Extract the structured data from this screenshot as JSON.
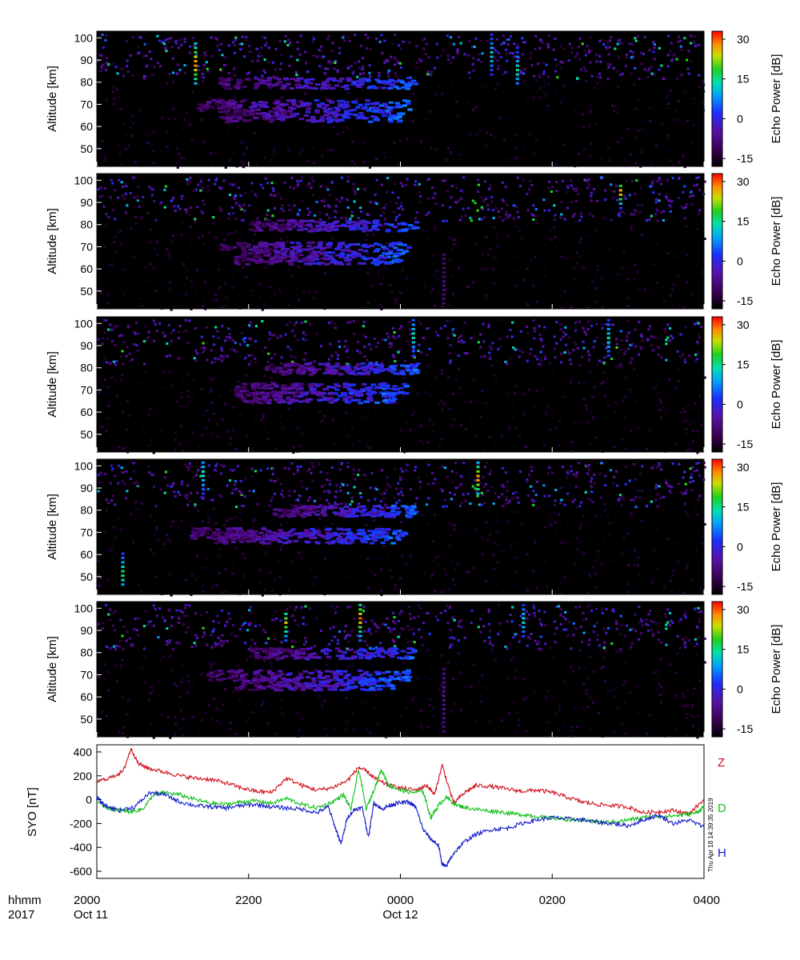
{
  "figure": {
    "stamp": "Thu Apr 18 14:39:35 2019",
    "time_row_label": "hhmm",
    "date_row_label": "2017"
  },
  "chart_data": [
    {
      "type": "heatmap",
      "panel": 1,
      "ylabel": "Altitude [km]",
      "yticks": [
        50,
        60,
        70,
        80,
        90,
        100
      ],
      "ylim": [
        42,
        103
      ],
      "xticks": [
        "2000",
        "2200",
        "0000",
        "0200",
        "0400"
      ],
      "xlim_hours": [
        20,
        28
      ],
      "colorbar_label": "Echo Power [dB]",
      "colorbar_ticks": [
        30,
        15,
        0,
        -15
      ],
      "colorbar_range": [
        -18,
        33
      ],
      "layers": [
        {
          "alt": 80,
          "start": 1.6,
          "end": 4.2
        },
        {
          "alt": 70,
          "start": 1.3,
          "end": 4.1
        },
        {
          "alt": 65,
          "start": 1.6,
          "end": 4.0
        }
      ],
      "features": [
        {
          "t": -2.72,
          "alt": 89,
          "top": 98,
          "bot": 80,
          "dB": 30
        },
        {
          "t": 1.18,
          "alt": 93,
          "top": 102,
          "bot": 84,
          "dB": 12
        },
        {
          "t": 1.52,
          "alt": 86,
          "top": 96,
          "bot": 80,
          "dB": 15
        }
      ]
    },
    {
      "type": "heatmap",
      "panel": 2,
      "ylabel": "Altitude [km]",
      "yticks": [
        50,
        60,
        70,
        80,
        90,
        100
      ],
      "ylim": [
        42,
        103
      ],
      "xticks": [
        "2000",
        "2200",
        "0000",
        "0200",
        "0400"
      ],
      "xlim_hours": [
        20,
        28
      ],
      "colorbar_label": "Echo Power [dB]",
      "colorbar_ticks": [
        30,
        15,
        0,
        -15
      ],
      "colorbar_range": [
        -18,
        33
      ],
      "layers": [
        {
          "alt": 80,
          "start": 2.0,
          "end": 4.2
        },
        {
          "alt": 70,
          "start": 1.6,
          "end": 4.1
        },
        {
          "alt": 65,
          "start": 1.8,
          "end": 4.0
        }
      ],
      "features": [
        {
          "t": 0.55,
          "alt": 55,
          "top": 67,
          "bot": 45,
          "dB": -8
        },
        {
          "t": 2.88,
          "alt": 95,
          "top": 98,
          "bot": 88,
          "dB": 30
        }
      ]
    },
    {
      "type": "heatmap",
      "panel": 3,
      "ylabel": "Altitude [km]",
      "yticks": [
        50,
        60,
        70,
        80,
        90,
        100
      ],
      "ylim": [
        42,
        103
      ],
      "xticks": [
        "2000",
        "2200",
        "0000",
        "0200",
        "0400"
      ],
      "xlim_hours": [
        20,
        28
      ],
      "colorbar_label": "Echo Power [dB]",
      "colorbar_ticks": [
        30,
        15,
        0,
        -15
      ],
      "colorbar_range": [
        -18,
        33
      ],
      "layers": [
        {
          "alt": 80,
          "start": 2.2,
          "end": 4.2
        },
        {
          "alt": 71,
          "start": 1.8,
          "end": 4.1
        },
        {
          "alt": 67,
          "start": 1.8,
          "end": 3.9
        }
      ],
      "features": [
        {
          "t": 0.15,
          "alt": 95,
          "top": 102,
          "bot": 86,
          "dB": 15
        },
        {
          "t": 2.72,
          "alt": 94,
          "top": 102,
          "bot": 86,
          "dB": 14
        }
      ]
    },
    {
      "type": "heatmap",
      "panel": 4,
      "ylabel": "Altitude [km]",
      "yticks": [
        50,
        60,
        70,
        80,
        90,
        100
      ],
      "ylim": [
        42,
        103
      ],
      "xticks": [
        "2000",
        "2200",
        "0000",
        "0200",
        "0400"
      ],
      "xlim_hours": [
        20,
        28
      ],
      "colorbar_label": "Echo Power [dB]",
      "colorbar_ticks": [
        30,
        15,
        0,
        -15
      ],
      "colorbar_range": [
        -18,
        33
      ],
      "layers": [
        {
          "alt": 80,
          "start": 2.3,
          "end": 4.2
        },
        {
          "alt": 70,
          "start": 1.2,
          "end": 4.1
        },
        {
          "alt": 68,
          "start": 1.5,
          "end": 4.0
        }
      ],
      "features": [
        {
          "t": -3.68,
          "alt": 52,
          "top": 62,
          "bot": 47,
          "dB": 18
        },
        {
          "t": -2.62,
          "alt": 97,
          "top": 102,
          "bot": 86,
          "dB": 15
        },
        {
          "t": 1.0,
          "alt": 95,
          "top": 102,
          "bot": 88,
          "dB": 30
        }
      ]
    },
    {
      "type": "heatmap",
      "panel": 5,
      "ylabel": "Altitude [km]",
      "yticks": [
        50,
        60,
        70,
        80,
        90,
        100
      ],
      "ylim": [
        42,
        103
      ],
      "xticks": [
        "2000",
        "2200",
        "0000",
        "0200",
        "0400"
      ],
      "xlim_hours": [
        20,
        28
      ],
      "colorbar_label": "Echo Power [dB]",
      "colorbar_ticks": [
        30,
        15,
        0,
        -15
      ],
      "colorbar_range": [
        -18,
        33
      ],
      "layers": [
        {
          "alt": 80,
          "start": 2.0,
          "end": 4.2
        },
        {
          "alt": 70,
          "start": 1.4,
          "end": 4.1
        },
        {
          "alt": 66,
          "start": 1.8,
          "end": 3.9
        }
      ],
      "features": [
        {
          "t": -1.53,
          "alt": 94,
          "top": 99,
          "bot": 86,
          "dB": 25
        },
        {
          "t": -0.55,
          "alt": 96,
          "top": 102,
          "bot": 86,
          "dB": 30
        },
        {
          "t": 0.55,
          "alt": 60,
          "top": 73,
          "bot": 45,
          "dB": -6
        },
        {
          "t": 1.6,
          "alt": 95,
          "top": 102,
          "bot": 88,
          "dB": 14
        }
      ]
    },
    {
      "type": "line",
      "panel": 6,
      "ylabel": "SYO [nT]",
      "yticks": [
        400,
        200,
        0,
        -200,
        -400,
        -600
      ],
      "ylim": [
        -660,
        460
      ],
      "xticks": [
        "2000",
        "2200",
        "0000",
        "0200",
        "0400"
      ],
      "x_dates": [
        "Oct 11",
        "Oct 12"
      ],
      "xlim_hours": [
        20,
        28
      ],
      "series": [
        {
          "name": "Z",
          "color": "#d0101c",
          "keypoints": [
            [
              20.0,
              150
            ],
            [
              20.2,
              190
            ],
            [
              20.35,
              240
            ],
            [
              20.45,
              430
            ],
            [
              20.55,
              300
            ],
            [
              20.7,
              260
            ],
            [
              20.9,
              230
            ],
            [
              21.1,
              200
            ],
            [
              21.3,
              180
            ],
            [
              21.5,
              170
            ],
            [
              21.7,
              140
            ],
            [
              21.9,
              100
            ],
            [
              22.1,
              70
            ],
            [
              22.3,
              60
            ],
            [
              22.5,
              180
            ],
            [
              22.7,
              120
            ],
            [
              22.9,
              80
            ],
            [
              23.1,
              100
            ],
            [
              23.3,
              160
            ],
            [
              23.45,
              270
            ],
            [
              23.55,
              240
            ],
            [
              23.7,
              160
            ],
            [
              23.85,
              120
            ],
            [
              24.0,
              100
            ],
            [
              24.2,
              80
            ],
            [
              24.35,
              120
            ],
            [
              24.45,
              40
            ],
            [
              24.55,
              290
            ],
            [
              24.7,
              -30
            ],
            [
              24.85,
              60
            ],
            [
              25.0,
              120
            ],
            [
              25.2,
              110
            ],
            [
              25.4,
              90
            ],
            [
              25.6,
              70
            ],
            [
              25.8,
              80
            ],
            [
              26.0,
              60
            ],
            [
              26.2,
              20
            ],
            [
              26.4,
              -20
            ],
            [
              26.6,
              -40
            ],
            [
              26.8,
              -50
            ],
            [
              27.0,
              -60
            ],
            [
              27.2,
              -110
            ],
            [
              27.4,
              -100
            ],
            [
              27.6,
              -90
            ],
            [
              27.8,
              -120
            ],
            [
              28.0,
              0
            ]
          ]
        },
        {
          "name": "D",
          "color": "#10c018",
          "keypoints": [
            [
              20.0,
              -20
            ],
            [
              20.15,
              -70
            ],
            [
              20.3,
              -90
            ],
            [
              20.45,
              -100
            ],
            [
              20.6,
              -80
            ],
            [
              20.75,
              40
            ],
            [
              20.9,
              60
            ],
            [
              21.1,
              40
            ],
            [
              21.3,
              0
            ],
            [
              21.5,
              -30
            ],
            [
              21.7,
              -40
            ],
            [
              21.9,
              -20
            ],
            [
              22.1,
              -10
            ],
            [
              22.3,
              -30
            ],
            [
              22.5,
              10
            ],
            [
              22.7,
              -40
            ],
            [
              22.9,
              -70
            ],
            [
              23.1,
              -20
            ],
            [
              23.25,
              40
            ],
            [
              23.35,
              -80
            ],
            [
              23.45,
              260
            ],
            [
              23.55,
              -80
            ],
            [
              23.65,
              80
            ],
            [
              23.75,
              250
            ],
            [
              23.85,
              120
            ],
            [
              24.0,
              80
            ],
            [
              24.15,
              60
            ],
            [
              24.3,
              70
            ],
            [
              24.4,
              -150
            ],
            [
              24.5,
              -50
            ],
            [
              24.6,
              20
            ],
            [
              24.75,
              -50
            ],
            [
              24.9,
              -70
            ],
            [
              25.1,
              -90
            ],
            [
              25.3,
              -100
            ],
            [
              25.5,
              -120
            ],
            [
              25.7,
              -130
            ],
            [
              25.9,
              -150
            ],
            [
              26.1,
              -160
            ],
            [
              26.3,
              -170
            ],
            [
              26.5,
              -180
            ],
            [
              26.7,
              -190
            ],
            [
              26.9,
              -180
            ],
            [
              27.1,
              -160
            ],
            [
              27.3,
              -140
            ],
            [
              27.5,
              -140
            ],
            [
              27.7,
              -130
            ],
            [
              27.9,
              -110
            ],
            [
              28.0,
              -60
            ]
          ]
        },
        {
          "name": "H",
          "color": "#1018c8",
          "keypoints": [
            [
              20.0,
              20
            ],
            [
              20.1,
              -50
            ],
            [
              20.3,
              -90
            ],
            [
              20.5,
              -60
            ],
            [
              20.7,
              60
            ],
            [
              20.9,
              40
            ],
            [
              21.1,
              -20
            ],
            [
              21.3,
              -50
            ],
            [
              21.5,
              -60
            ],
            [
              21.7,
              -70
            ],
            [
              21.9,
              -50
            ],
            [
              22.1,
              -40
            ],
            [
              22.3,
              -60
            ],
            [
              22.5,
              -70
            ],
            [
              22.7,
              -80
            ],
            [
              22.9,
              -110
            ],
            [
              23.05,
              -60
            ],
            [
              23.15,
              -250
            ],
            [
              23.22,
              -370
            ],
            [
              23.3,
              -150
            ],
            [
              23.4,
              -80
            ],
            [
              23.5,
              -70
            ],
            [
              23.58,
              -320
            ],
            [
              23.65,
              -20
            ],
            [
              23.75,
              -80
            ],
            [
              23.85,
              -50
            ],
            [
              23.95,
              -30
            ],
            [
              24.1,
              -20
            ],
            [
              24.2,
              -60
            ],
            [
              24.3,
              -250
            ],
            [
              24.4,
              -330
            ],
            [
              24.5,
              -380
            ],
            [
              24.55,
              -540
            ],
            [
              24.6,
              -560
            ],
            [
              24.7,
              -450
            ],
            [
              24.85,
              -350
            ],
            [
              25.0,
              -290
            ],
            [
              25.2,
              -250
            ],
            [
              25.4,
              -240
            ],
            [
              25.6,
              -200
            ],
            [
              25.8,
              -170
            ],
            [
              26.0,
              -150
            ],
            [
              26.2,
              -160
            ],
            [
              26.4,
              -170
            ],
            [
              26.6,
              -190
            ],
            [
              26.8,
              -200
            ],
            [
              27.0,
              -220
            ],
            [
              27.2,
              -170
            ],
            [
              27.4,
              -130
            ],
            [
              27.6,
              -200
            ],
            [
              27.8,
              -170
            ],
            [
              28.0,
              -230
            ]
          ]
        }
      ]
    }
  ]
}
